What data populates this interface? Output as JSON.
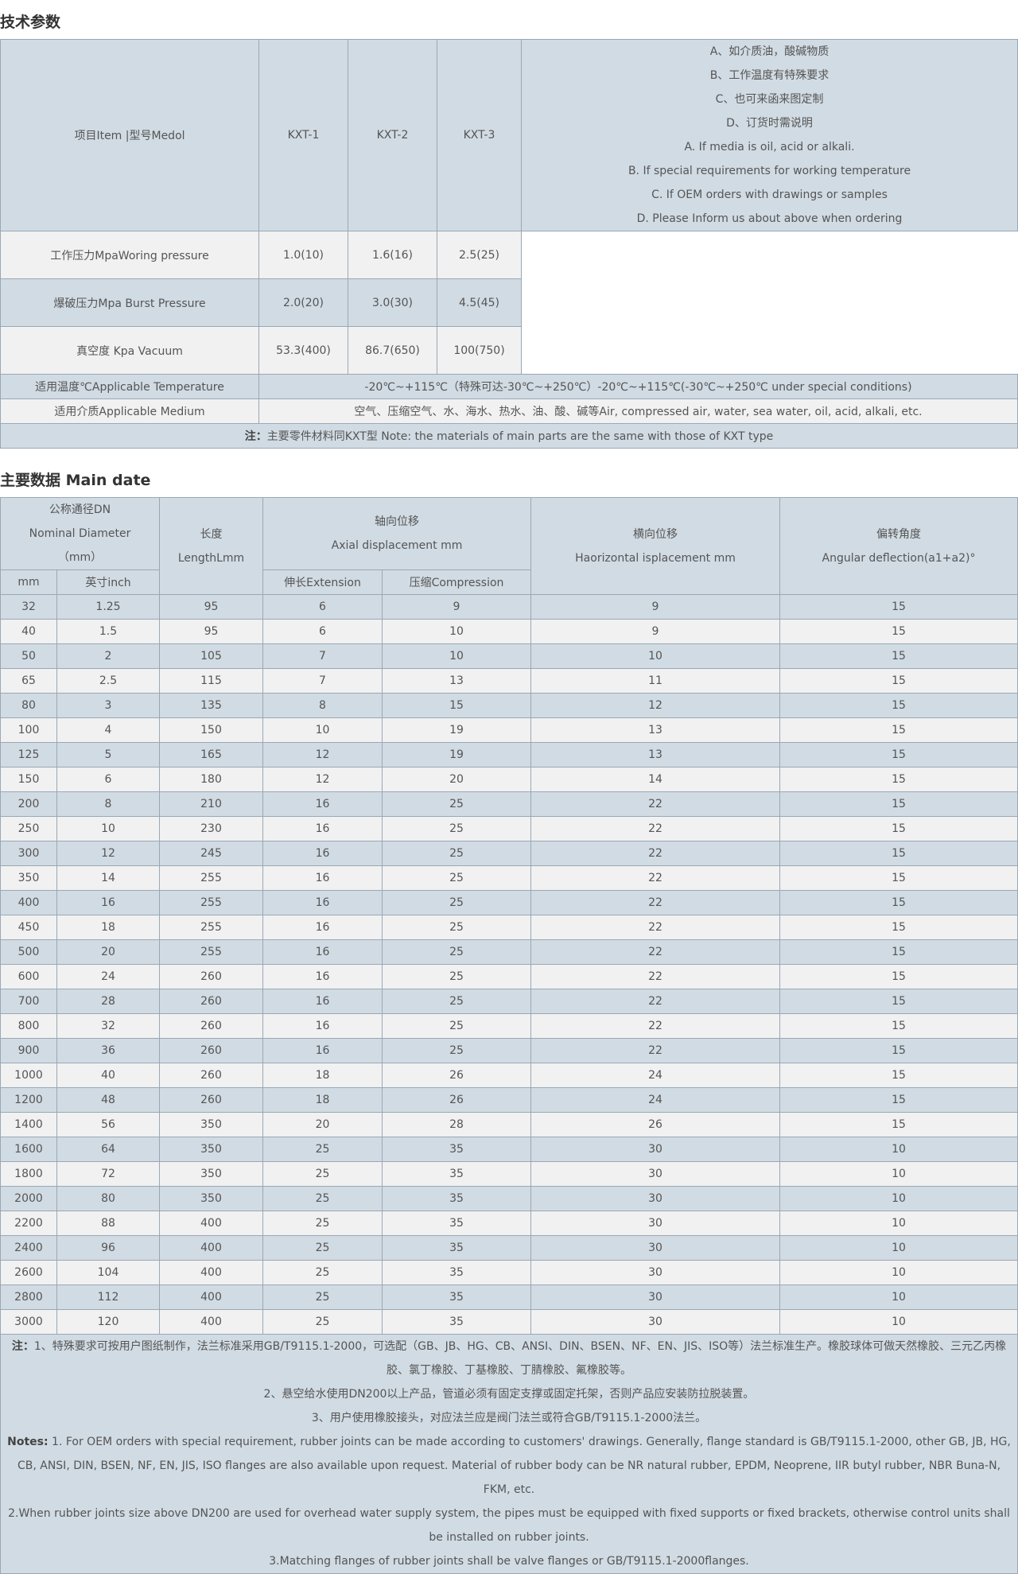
{
  "section1": {
    "title": "技术参数"
  },
  "tech_table": {
    "header": [
      "项目Item |型号Medol",
      "KXT-1",
      "KXT-2",
      "KXT-3"
    ],
    "remarks": [
      "A、如介质油，酸碱物质",
      "B、工作温度有特殊要求",
      "C、也可来函来图定制",
      "D、订货时需说明",
      "A. If media is oil, acid or alkali.",
      "B. If special requirements for working temperature",
      "C. If OEM orders with drawings or samples",
      "D. Please Inform us about above when ordering"
    ],
    "rows": [
      [
        "工作压力MpaWoring pressure",
        "1.0(10)",
        "1.6(16)",
        "2.5(25)"
      ],
      [
        "爆破压力Mpa Burst Pressure",
        "2.0(20)",
        "3.0(30)",
        "4.5(45)"
      ],
      [
        "真空度 Kpa Vacuum",
        "53.3(400)",
        "86.7(650)",
        "100(750)"
      ]
    ],
    "temperature": [
      "适用温度℃Applicable Temperature",
      "-20℃~+115℃（特殊可达-30℃~+250℃）-20℃~+115℃(-30℃~+250℃ under special conditions)"
    ],
    "medium": [
      "适用介质Applicable Medium",
      "空气、压缩空气、水、海水、热水、油、酸、碱等Air, compressed air, water, sea water, oil, acid, alkali, etc."
    ],
    "note": {
      "label": "注：",
      "text": "主要零件材料同KXT型 Note: the materials of main parts are the same with those of KXT type"
    }
  },
  "section2": {
    "title": "主要数据",
    "subtitle": "Main date"
  },
  "data_table": {
    "header": {
      "dn": [
        "公称通径DN",
        "Nominal Diameter",
        "（mm）"
      ],
      "length": [
        "长度",
        "LengthLmm"
      ],
      "axial": [
        "轴向位移",
        "Axial displacement mm"
      ],
      "lateral": [
        "横向位移",
        "Haorizontal isplacement mm"
      ],
      "angular": [
        "偏转角度",
        "Angular deflection(a1+a2)°"
      ],
      "sub": [
        "mm",
        "英寸inch",
        "伸长Extension",
        "压缩Compression"
      ]
    },
    "rows": [
      [
        32,
        1.25,
        95,
        6,
        9,
        9,
        15
      ],
      [
        40,
        1.5,
        95,
        6,
        10,
        9,
        15
      ],
      [
        50,
        2,
        105,
        7,
        10,
        10,
        15
      ],
      [
        65,
        2.5,
        115,
        7,
        13,
        11,
        15
      ],
      [
        80,
        3,
        135,
        8,
        15,
        12,
        15
      ],
      [
        100,
        4,
        150,
        10,
        19,
        13,
        15
      ],
      [
        125,
        5,
        165,
        12,
        19,
        13,
        15
      ],
      [
        150,
        6,
        180,
        12,
        20,
        14,
        15
      ],
      [
        200,
        8,
        210,
        16,
        25,
        22,
        15
      ],
      [
        250,
        10,
        230,
        16,
        25,
        22,
        15
      ],
      [
        300,
        12,
        245,
        16,
        25,
        22,
        15
      ],
      [
        350,
        14,
        255,
        16,
        25,
        22,
        15
      ],
      [
        400,
        16,
        255,
        16,
        25,
        22,
        15
      ],
      [
        450,
        18,
        255,
        16,
        25,
        22,
        15
      ],
      [
        500,
        20,
        255,
        16,
        25,
        22,
        15
      ],
      [
        600,
        24,
        260,
        16,
        25,
        22,
        15
      ],
      [
        700,
        28,
        260,
        16,
        25,
        22,
        15
      ],
      [
        800,
        32,
        260,
        16,
        25,
        22,
        15
      ],
      [
        900,
        36,
        260,
        16,
        25,
        22,
        15
      ],
      [
        1000,
        40,
        260,
        18,
        26,
        24,
        15
      ],
      [
        1200,
        48,
        260,
        18,
        26,
        24,
        15
      ],
      [
        1400,
        56,
        350,
        20,
        28,
        26,
        15
      ],
      [
        1600,
        64,
        350,
        25,
        35,
        30,
        10
      ],
      [
        1800,
        72,
        350,
        25,
        35,
        30,
        10
      ],
      [
        2000,
        80,
        350,
        25,
        35,
        30,
        10
      ],
      [
        2200,
        88,
        400,
        25,
        35,
        30,
        10
      ],
      [
        2400,
        96,
        400,
        25,
        35,
        30,
        10
      ],
      [
        2600,
        104,
        400,
        25,
        35,
        30,
        10
      ],
      [
        2800,
        112,
        400,
        25,
        35,
        30,
        10
      ],
      [
        3000,
        120,
        400,
        25,
        35,
        30,
        10
      ]
    ],
    "notes": {
      "cn_label": "注：",
      "cn": [
        "1、特殊要求可按用户图纸制作，法兰标准采用GB/T9115.1-2000，可选配（GB、JB、HG、CB、ANSI、DIN、BSEN、NF、EN、JIS、ISO等）法兰标准生产。橡胶球体可做天然橡胶、三元乙丙橡胶、氯丁橡胶、丁基橡胶、丁腈橡胶、氟橡胶等。",
        "2、悬空给水使用DN200以上产品，管道必须有固定支撑或固定托架，否则产品应安装防拉脱装置。",
        "3、用户使用橡胶接头，对应法兰应是阀门法兰或符合GB/T9115.1-2000法兰。"
      ],
      "en_label": "Notes:",
      "en": [
        " 1. For OEM orders with special requirement, rubber joints can be made according to customers' drawings. Generally, flange standard is GB/T9115.1-2000, other GB, JB, HG, CB, ANSI, DIN, BSEN, NF, EN, JIS, ISO flanges are also available upon request. Material of rubber body can be NR natural rubber, EPDM, Neoprene, IIR butyl rubber, NBR Buna-N, FKM, etc.",
        "2.When rubber joints size above DN200 are used for overhead water supply system, the pipes must be equipped with fixed supports or fixed brackets, otherwise control units shall be installed on rubber joints.",
        "3.Matching flanges of rubber joints shall be valve flanges or GB/T9115.1-2000flanges."
      ]
    }
  }
}
